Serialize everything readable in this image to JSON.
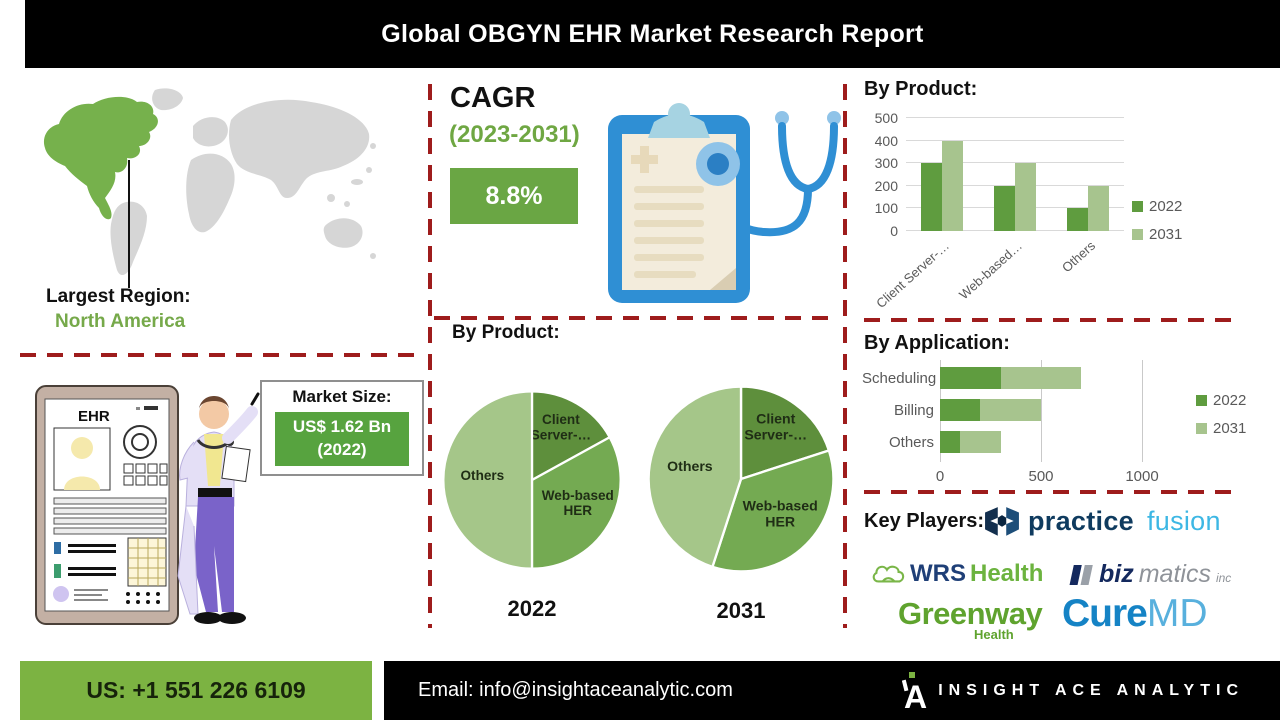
{
  "header": {
    "title": "Global OBGYN EHR Market Research Report"
  },
  "region": {
    "label": "Largest Region:",
    "value": "North America"
  },
  "cagr": {
    "label": "CAGR",
    "period": "(2023-2031)",
    "value": "8.8%"
  },
  "market_size": {
    "label": "Market Size:",
    "value": "US$ 1.62 Bn",
    "year": "(2022)"
  },
  "ehr": {
    "title": "EHR"
  },
  "sections": {
    "by_product_bars": "By Product:",
    "by_product_pies": "By Product:",
    "by_application": "By Application:",
    "key_players": "Key Players:"
  },
  "players": {
    "practice_fusion": {
      "part1": "practice",
      "part2": "fusion"
    },
    "wrs": {
      "part1": "WRS",
      "part2": "Health"
    },
    "bizmatics": {
      "part1": "biz",
      "part2": "matics",
      "part3": "inc"
    },
    "greenway": {
      "part1": "Greenway",
      "part2": "Health"
    },
    "curemd": {
      "part1": "Cure",
      "part2": "MD"
    }
  },
  "footer": {
    "phone": "US: +1 551 226 6109",
    "email_label": "Email:",
    "email": "info@insightaceanalytic.com",
    "brand": "INSIGHT ACE ANALYTIC"
  },
  "colors": {
    "series_2022": "#5f9c3f",
    "series_2031": "#a7c48e",
    "pie_dark": "#5e8f3c",
    "pie_mid": "#74aa52",
    "pie_light": "#a5c689",
    "dashed_red": "#9e1c1c",
    "accent_green": "#6fa743",
    "footer_green": "#7cb342",
    "map_region_green": "#76b14c",
    "map_gray": "#d6d6d6"
  },
  "chart_data": [
    {
      "id": "product_bars",
      "type": "bar",
      "title": "By Product:",
      "categories": [
        "Client Server-…",
        "Web-based…",
        "Others"
      ],
      "series": [
        {
          "name": "2022",
          "values": [
            300,
            200,
            100
          ],
          "color": "#5f9c3f"
        },
        {
          "name": "2031",
          "values": [
            400,
            300,
            200
          ],
          "color": "#a7c48e"
        }
      ],
      "ylim": [
        0,
        500
      ],
      "yticks": [
        0,
        100,
        200,
        300,
        400,
        500
      ],
      "grid": true,
      "legend_position": "right"
    },
    {
      "id": "product_pie_2022",
      "type": "pie",
      "label": "2022",
      "slices": [
        {
          "name": "Client Server-…",
          "value": 17,
          "color": "#5e8f3c",
          "label_lines": [
            "Client",
            "Server-…"
          ]
        },
        {
          "name": "Web-based HER",
          "value": 33,
          "color": "#74aa52",
          "label_lines": [
            "Web-based",
            "HER"
          ]
        },
        {
          "name": "Others",
          "value": 50,
          "color": "#a5c689",
          "label_lines": [
            "Others"
          ]
        }
      ]
    },
    {
      "id": "product_pie_2031",
      "type": "pie",
      "label": "2031",
      "slices": [
        {
          "name": "Client Server-…",
          "value": 20,
          "color": "#5e8f3c",
          "label_lines": [
            "Client",
            "Server-…"
          ]
        },
        {
          "name": "Web-based HER",
          "value": 35,
          "color": "#74aa52",
          "label_lines": [
            "Web-based",
            "HER"
          ]
        },
        {
          "name": "Others",
          "value": 45,
          "color": "#a5c689",
          "label_lines": [
            "Others"
          ]
        }
      ]
    },
    {
      "id": "application_bars",
      "type": "bar-horizontal-stacked",
      "title": "By Application:",
      "categories": [
        "Scheduling",
        "Billing",
        "Others"
      ],
      "series": [
        {
          "name": "2022",
          "values": [
            300,
            200,
            100
          ],
          "color": "#5f9c3f"
        },
        {
          "name": "2031",
          "values": [
            400,
            300,
            200
          ],
          "color": "#a7c48e"
        }
      ],
      "xticks": [
        0,
        500,
        1000
      ],
      "xlim": [
        0,
        1100
      ],
      "legend_position": "right"
    }
  ]
}
